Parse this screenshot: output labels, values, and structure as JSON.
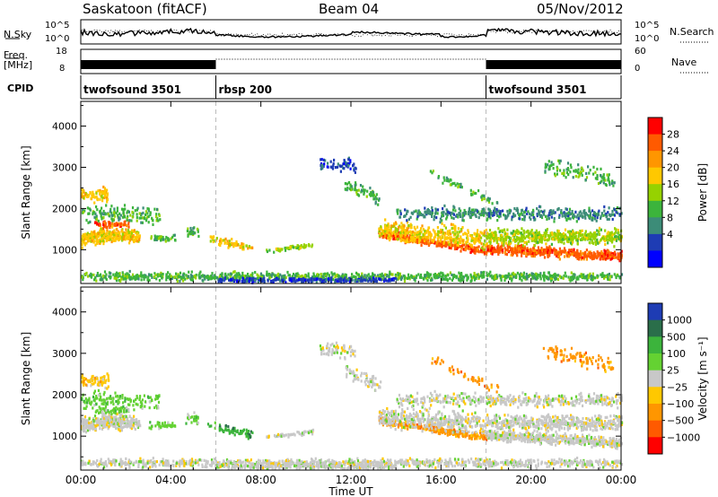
{
  "header": {
    "station": "Saskatoon (fitACF)",
    "beam": "Beam 04",
    "date": "05/Nov/2012"
  },
  "top_panels": {
    "nsky_label": "N.Sky",
    "nsky_ticks": [
      "10^5",
      "10^0"
    ],
    "nsearch_label": "N.Search",
    "nsearch_ticks": [
      "10^5",
      "10^0"
    ],
    "freq_label_1": "Freq.",
    "freq_label_2": "[MHz]",
    "freq_ticks": [
      "18",
      "8"
    ],
    "nave_label": "Nave",
    "nave_ticks": [
      "60",
      "0"
    ],
    "cpid_label": "CPID",
    "cpid_segments": [
      {
        "name": "twofsound 3501",
        "start_h": 0
      },
      {
        "name": "rbsp 200",
        "start_h": 6
      },
      {
        "name": "twofsound 3501",
        "start_h": 18
      }
    ]
  },
  "chart_data": [
    {
      "type": "heatmap",
      "name": "power",
      "xlabel": "",
      "ylabel": "Slant Range [km]",
      "x_ticks": [
        "00:00",
        "04:00",
        "08:00",
        "12:00",
        "16:00",
        "20:00",
        "00:00"
      ],
      "x_range_hours": [
        0,
        24
      ],
      "y_ticks": [
        1000,
        2000,
        3000,
        4000
      ],
      "y_range_km": [
        180,
        4600
      ],
      "colorbar_label": "Power [dB]",
      "colorbar_ticks": [
        "28",
        "24",
        "20",
        "16",
        "12",
        "8",
        "4"
      ],
      "colorbar_colors": [
        "#ff0000",
        "#ff5a00",
        "#ff9600",
        "#ffc800",
        "#96d200",
        "#3cb43c",
        "#3c8c78",
        "#1e3cb4",
        "#0000ff"
      ]
    },
    {
      "type": "heatmap",
      "name": "velocity",
      "xlabel": "Time UT",
      "ylabel": "Slant Range [km]",
      "x_ticks": [
        "00:00",
        "04:00",
        "08:00",
        "12:00",
        "16:00",
        "20:00",
        "00:00"
      ],
      "x_range_hours": [
        0,
        24
      ],
      "y_ticks": [
        1000,
        2000,
        3000,
        4000
      ],
      "y_range_km": [
        180,
        4600
      ],
      "colorbar_label": "Velocity [m s⁻¹]",
      "colorbar_ticks": [
        "1000",
        "500",
        "100",
        "25",
        "−25",
        "−100",
        "−500",
        "−1000"
      ],
      "colorbar_colors": [
        "#1e3cb4",
        "#2a6e4a",
        "#3cb43c",
        "#64d232",
        "#c8c8c8",
        "#ffc800",
        "#ff9600",
        "#ff5a00",
        "#ff0000"
      ]
    }
  ]
}
